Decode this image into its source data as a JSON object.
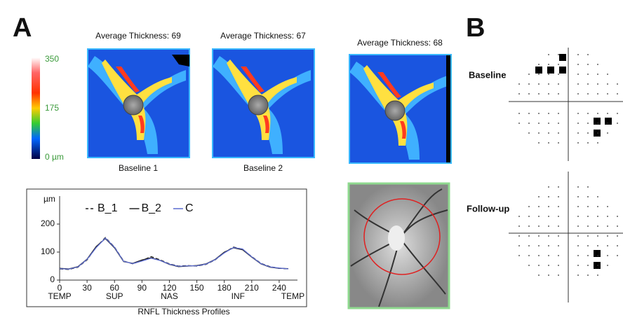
{
  "panel_labels": {
    "a": "A",
    "b": "B"
  },
  "color_scale": {
    "ticks": [
      350,
      175,
      {
        "value": 0,
        "label": "0 µm"
      }
    ]
  },
  "thickness_maps": [
    {
      "title": "Average Thickness: 69",
      "caption": "Baseline 1"
    },
    {
      "title": "Average Thickness: 67",
      "caption": "Baseline 2"
    },
    {
      "title": "Average Thickness: 68"
    }
  ],
  "chart_data": {
    "type": "line",
    "title": "RNFL Thickness Profiles",
    "y_label": "µm",
    "x": [
      0,
      10,
      20,
      30,
      40,
      50,
      60,
      70,
      80,
      90,
      100,
      110,
      120,
      130,
      140,
      150,
      160,
      170,
      180,
      190,
      200,
      210,
      220,
      230,
      240,
      250
    ],
    "series": [
      {
        "name": "B_1",
        "color": "#222222",
        "dash": true,
        "values": [
          40,
          38,
          46,
          72,
          118,
          152,
          118,
          68,
          58,
          70,
          84,
          72,
          58,
          50,
          52,
          50,
          56,
          72,
          98,
          118,
          110,
          84,
          60,
          48,
          42,
          40
        ]
      },
      {
        "name": "B_2",
        "color": "#222222",
        "dash": false,
        "values": [
          42,
          40,
          48,
          75,
          120,
          148,
          115,
          66,
          60,
          72,
          80,
          70,
          56,
          48,
          50,
          52,
          58,
          74,
          100,
          115,
          108,
          82,
          58,
          46,
          42,
          41
        ]
      },
      {
        "name": "C",
        "color": "#5b6bd0",
        "dash": false,
        "values": [
          41,
          39,
          47,
          74,
          116,
          150,
          117,
          67,
          59,
          68,
          78,
          70,
          57,
          49,
          51,
          51,
          57,
          73,
          97,
          116,
          111,
          83,
          59,
          47,
          43,
          40
        ]
      }
    ],
    "xlim": [
      0,
      260
    ],
    "ylim": [
      0,
      300
    ],
    "xticks": [
      0,
      30,
      60,
      90,
      120,
      150,
      180,
      210,
      240
    ],
    "yticks": [
      0,
      100,
      200
    ],
    "region_labels": [
      {
        "x": 0,
        "label": "TEMP"
      },
      {
        "x": 60,
        "label": "SUP"
      },
      {
        "x": 120,
        "label": "NAS"
      },
      {
        "x": 195,
        "label": "INF"
      },
      {
        "x": 255,
        "label": "TEMP"
      }
    ]
  },
  "field_labels": {
    "baseline": "Baseline",
    "follow_up": "Follow-up"
  }
}
